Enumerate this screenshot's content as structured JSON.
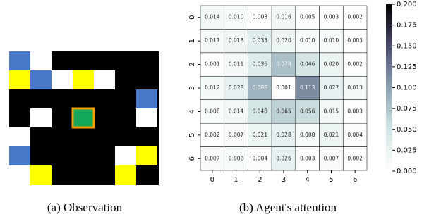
{
  "captions": [
    "(a) Observation",
    "(b) Agent's attention"
  ],
  "chart_data": {
    "type": "heatmap",
    "x": [
      0,
      1,
      2,
      3,
      4,
      5,
      6
    ],
    "y": [
      0,
      1,
      2,
      3,
      4,
      5,
      6
    ],
    "values": [
      [
        0.014,
        0.01,
        0.003,
        0.016,
        0.005,
        0.003,
        0.002
      ],
      [
        0.011,
        0.018,
        0.033,
        0.02,
        0.01,
        0.01,
        0.003
      ],
      [
        0.001,
        0.011,
        0.036,
        0.078,
        0.046,
        0.02,
        0.002
      ],
      [
        0.012,
        0.028,
        0.086,
        0.001,
        0.113,
        0.027,
        0.013
      ],
      [
        0.008,
        0.014,
        0.048,
        0.065,
        0.056,
        0.015,
        0.003
      ],
      [
        0.002,
        0.007,
        0.021,
        0.028,
        0.008,
        0.021,
        0.004
      ],
      [
        0.007,
        0.008,
        0.004,
        0.026,
        0.003,
        0.007,
        0.002
      ]
    ],
    "value_labels": [
      [
        "0.014",
        "0.010",
        "0.003",
        "0.016",
        "0.005",
        "0.003",
        "0.002"
      ],
      [
        "0.011",
        "0.018",
        "0.033",
        "0.020",
        "0.010",
        "0.010",
        "0.003"
      ],
      [
        "0.001",
        "0.011",
        "0.036",
        "0.078",
        "0.046",
        "0.020",
        "0.002"
      ],
      [
        "0.012",
        "0.028",
        "0.086",
        "0.001",
        "0.113",
        "0.027",
        "0.013"
      ],
      [
        "0.008",
        "0.014",
        "0.048",
        "0.065",
        "0.056",
        "0.015",
        "0.003"
      ],
      [
        "0.002",
        "0.007",
        "0.021",
        "0.028",
        "0.008",
        "0.021",
        "0.004"
      ],
      [
        "0.007",
        "0.008",
        "0.004",
        "0.026",
        "0.003",
        "0.007",
        "0.002"
      ]
    ],
    "colormap": [
      "#ffffff",
      "#d2e4e4",
      "#8ea3b3",
      "#4b4b6c",
      "#000000"
    ],
    "clim": [
      0,
      0.2
    ],
    "cticks": [
      {
        "value": 0,
        "label": "0.000"
      },
      {
        "value": 0.025,
        "label": "0.025"
      },
      {
        "value": 0.05,
        "label": "0.050"
      },
      {
        "value": 0.075,
        "label": "0.075"
      },
      {
        "value": 0.1,
        "label": "0.100"
      },
      {
        "value": 0.125,
        "label": "0.125"
      },
      {
        "value": 0.15,
        "label": "0.150"
      },
      {
        "value": 0.175,
        "label": "0.175"
      },
      {
        "value": 0.2,
        "label": "0.200"
      }
    ]
  }
}
